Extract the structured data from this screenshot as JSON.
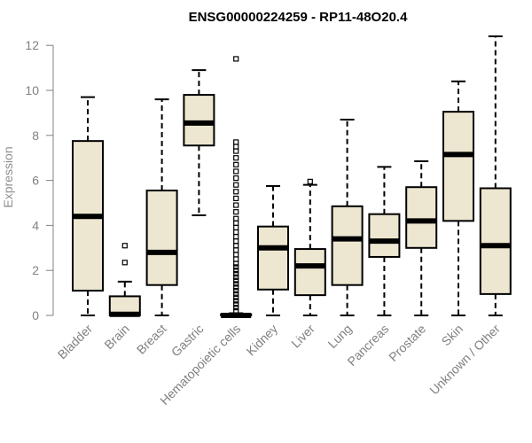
{
  "chart_data": {
    "type": "box",
    "title": "ENSG00000224259 - RP11-48O20.4",
    "xlabel": "",
    "ylabel": "Expression",
    "ylim": [
      0,
      12.5
    ],
    "yticks": [
      0,
      2,
      4,
      6,
      8,
      10,
      12
    ],
    "grid": false,
    "box_fill": "#ede6d0",
    "box_stroke": "#000000",
    "categories": [
      "Bladder",
      "Brain",
      "Breast",
      "Gastric",
      "Hematopoietic cells",
      "Kidney",
      "Liver",
      "Lung",
      "Pancreas",
      "Prostate",
      "Skin",
      "Unknown / Other"
    ],
    "boxes": [
      {
        "category": "Bladder",
        "whisker_low": 0,
        "q1": 1.1,
        "median": 4.4,
        "q3": 7.75,
        "whisker_high": 9.7,
        "outliers": []
      },
      {
        "category": "Brain",
        "whisker_low": 0,
        "q1": 0,
        "median": 0.05,
        "q3": 0.85,
        "whisker_high": 1.5,
        "outliers": [
          2.35,
          3.1
        ]
      },
      {
        "category": "Breast",
        "whisker_low": 0,
        "q1": 1.35,
        "median": 2.8,
        "q3": 5.55,
        "whisker_high": 9.6,
        "outliers": []
      },
      {
        "category": "Gastric",
        "whisker_low": 4.45,
        "q1": 7.55,
        "median": 8.55,
        "q3": 9.8,
        "whisker_high": 10.9,
        "outliers": []
      },
      {
        "category": "Hematopoietic cells",
        "whisker_low": 0,
        "q1": 0,
        "median": 0,
        "q3": 0.05,
        "whisker_high": 0.1,
        "outliers": [
          0.2,
          0.35,
          0.5,
          0.65,
          0.8,
          0.95,
          1.1,
          1.25,
          1.4,
          1.55,
          1.7,
          1.85,
          2.0,
          2.15,
          2.3,
          2.5,
          2.7,
          2.9,
          3.1,
          3.3,
          3.5,
          3.7,
          3.9,
          4.1,
          4.3,
          4.6,
          4.9,
          5.2,
          5.5,
          5.8,
          6.1,
          6.4,
          6.7,
          7.0,
          7.3,
          7.5,
          7.7,
          11.4
        ]
      },
      {
        "category": "Kidney",
        "whisker_low": 0,
        "q1": 1.15,
        "median": 3.0,
        "q3": 3.95,
        "whisker_high": 5.75,
        "outliers": []
      },
      {
        "category": "Liver",
        "whisker_low": 0,
        "q1": 0.9,
        "median": 2.2,
        "q3": 2.95,
        "whisker_high": 5.8,
        "outliers": [
          5.95
        ]
      },
      {
        "category": "Lung",
        "whisker_low": 0,
        "q1": 1.35,
        "median": 3.4,
        "q3": 4.85,
        "whisker_high": 8.7,
        "outliers": []
      },
      {
        "category": "Pancreas",
        "whisker_low": 0,
        "q1": 2.6,
        "median": 3.3,
        "q3": 4.5,
        "whisker_high": 6.6,
        "outliers": []
      },
      {
        "category": "Prostate",
        "whisker_low": 0,
        "q1": 3.0,
        "median": 4.2,
        "q3": 5.7,
        "whisker_high": 6.85,
        "outliers": []
      },
      {
        "category": "Skin",
        "whisker_low": 0,
        "q1": 4.2,
        "median": 7.15,
        "q3": 9.05,
        "whisker_high": 10.4,
        "outliers": []
      },
      {
        "category": "Unknown / Other",
        "whisker_low": 0,
        "q1": 0.95,
        "median": 3.1,
        "q3": 5.65,
        "whisker_high": 12.4,
        "outliers": []
      }
    ]
  }
}
